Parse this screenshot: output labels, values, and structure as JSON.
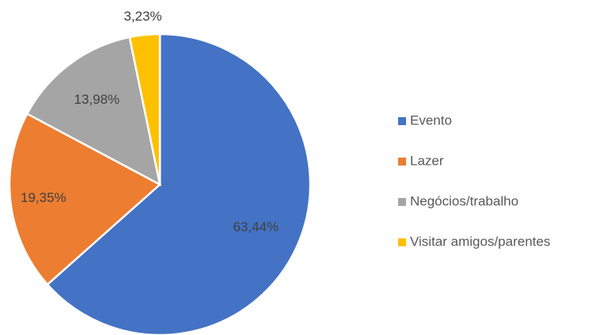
{
  "chart_data": {
    "type": "pie",
    "categories": [
      "Evento",
      "Lazer",
      "Negócios/trabalho",
      "Visitar amigos/parentes"
    ],
    "values": [
      63.44,
      19.35,
      13.98,
      3.23
    ],
    "value_labels": [
      "63,44%",
      "19,35%",
      "13,98%",
      "3,23%"
    ],
    "colors": [
      "#4472c4",
      "#ed7d31",
      "#a5a5a5",
      "#ffc000"
    ],
    "legend": "right"
  }
}
